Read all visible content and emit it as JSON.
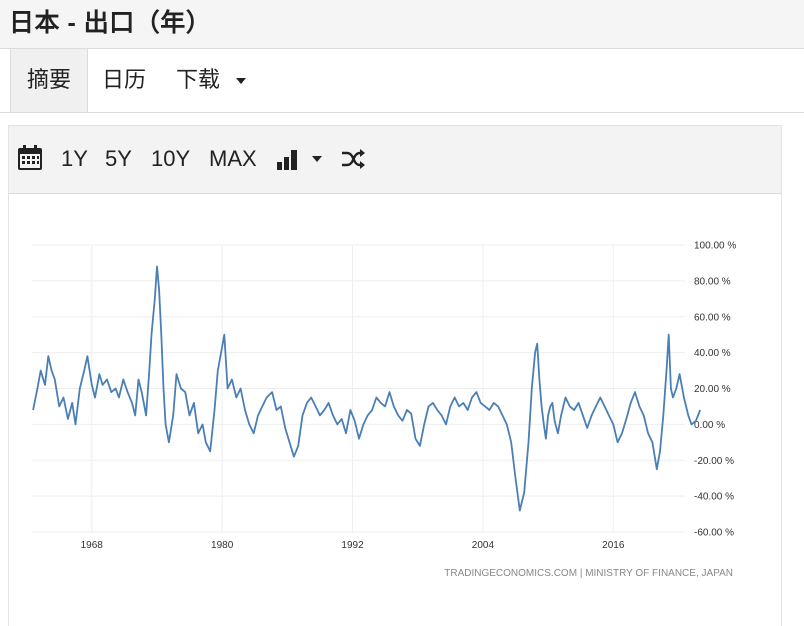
{
  "page": {
    "title": "日本 - 出口（年）"
  },
  "tabs": [
    {
      "label": "摘要"
    },
    {
      "label": "日历"
    },
    {
      "label": "下载"
    }
  ],
  "toolbar": {
    "ranges": [
      "1Y",
      "5Y",
      "10Y",
      "MAX"
    ],
    "icons": [
      "calendar-icon",
      "bar-chart-icon",
      "chevron-down-icon",
      "shuffle-icon"
    ]
  },
  "chart_data": {
    "type": "line",
    "title": "",
    "xlabel": "",
    "ylabel": "",
    "ylim": [
      -60,
      100
    ],
    "xlim": [
      1962.5,
      2022.6
    ],
    "yticks": [
      100,
      80,
      60,
      40,
      20,
      0,
      -20,
      -40,
      -60
    ],
    "ytick_labels": [
      "100.00 %",
      "80.00 %",
      "60.00 %",
      "40.00 %",
      "20.00 %",
      "0.00 %",
      "-20.00 %",
      "-40.00 %",
      "-60.00 %"
    ],
    "xticks": [
      1968,
      1980,
      1992,
      2004,
      2016
    ],
    "xtick_labels": [
      "1968",
      "1980",
      "1992",
      "2004",
      "2016"
    ],
    "grid": true,
    "source": "TRADINGECONOMICS.COM | MINISTRY OF FINANCE, JAPAN",
    "colors": {
      "line": "#4a7fb5",
      "grid": "#eeeeee"
    },
    "series": [
      {
        "x": [
          1962.6,
          1963.0,
          1963.3,
          1963.7,
          1964.0,
          1964.3,
          1964.6,
          1965.0,
          1965.4,
          1965.8,
          1966.2,
          1966.5,
          1966.9,
          1967.3,
          1967.6,
          1968.0,
          1968.3,
          1968.7,
          1969.0,
          1969.4,
          1969.8,
          1970.2,
          1970.5,
          1970.9,
          1971.3,
          1971.7,
          1972.0,
          1972.3,
          1972.6,
          1973.0,
          1973.3,
          1973.5,
          1973.8,
          1974.0,
          1974.2,
          1974.4,
          1974.6,
          1974.8,
          1975.1,
          1975.5,
          1975.8,
          1976.2,
          1976.6,
          1977.0,
          1977.4,
          1977.8,
          1978.2,
          1978.5,
          1978.9,
          1979.3,
          1979.6,
          1979.9,
          1980.2,
          1980.5,
          1980.9,
          1981.3,
          1981.7,
          1982.1,
          1982.5,
          1982.9,
          1983.3,
          1983.7,
          1984.1,
          1984.6,
          1985.0,
          1985.4,
          1985.8,
          1986.2,
          1986.6,
          1987.0,
          1987.4,
          1987.8,
          1988.2,
          1988.6,
          1989.0,
          1989.4,
          1989.8,
          1990.2,
          1990.6,
          1991.0,
          1991.4,
          1991.8,
          1992.2,
          1992.6,
          1993.0,
          1993.4,
          1993.8,
          1994.2,
          1994.6,
          1995.0,
          1995.4,
          1995.8,
          1996.2,
          1996.6,
          1997.0,
          1997.4,
          1997.8,
          1998.2,
          1998.6,
          1999.0,
          1999.4,
          1999.8,
          2000.2,
          2000.6,
          2001.0,
          2001.4,
          2001.8,
          2002.2,
          2002.6,
          2003.0,
          2003.4,
          2003.8,
          2004.2,
          2004.6,
          2005.0,
          2005.4,
          2005.8,
          2006.2,
          2006.6,
          2007.0,
          2007.4,
          2007.8,
          2008.2,
          2008.5,
          2008.8,
          2009.0,
          2009.2,
          2009.4,
          2009.6,
          2009.8,
          2010.0,
          2010.2,
          2010.4,
          2010.6,
          2010.9,
          2011.2,
          2011.6,
          2012.0,
          2012.4,
          2012.8,
          2013.2,
          2013.6,
          2014.0,
          2014.4,
          2014.8,
          2015.2,
          2015.6,
          2016.0,
          2016.4,
          2016.8,
          2017.2,
          2017.6,
          2018.0,
          2018.4,
          2018.8,
          2019.2,
          2019.6,
          2020.0,
          2020.3,
          2020.6,
          2020.9,
          2021.1,
          2021.3,
          2021.5,
          2021.8,
          2022.1,
          2022.5,
          2022.9,
          2023.2,
          2023.6,
          2024.0
        ],
        "y": [
          8,
          20,
          30,
          22,
          38,
          30,
          25,
          10,
          15,
          3,
          12,
          0,
          20,
          30,
          38,
          22,
          15,
          28,
          22,
          25,
          18,
          20,
          15,
          25,
          18,
          12,
          5,
          25,
          18,
          5,
          30,
          50,
          70,
          88,
          75,
          50,
          20,
          0,
          -10,
          5,
          28,
          20,
          18,
          5,
          12,
          -5,
          0,
          -10,
          -15,
          8,
          30,
          40,
          50,
          20,
          25,
          15,
          20,
          8,
          0,
          -5,
          5,
          10,
          15,
          18,
          8,
          10,
          -2,
          -10,
          -18,
          -12,
          5,
          12,
          15,
          10,
          5,
          8,
          12,
          5,
          0,
          3,
          -5,
          8,
          2,
          -8,
          0,
          5,
          8,
          15,
          12,
          10,
          18,
          10,
          5,
          2,
          8,
          6,
          -8,
          -12,
          0,
          10,
          12,
          8,
          5,
          0,
          10,
          15,
          10,
          12,
          8,
          15,
          18,
          12,
          10,
          8,
          12,
          10,
          5,
          0,
          -10,
          -30,
          -48,
          -38,
          -10,
          20,
          40,
          45,
          25,
          10,
          0,
          -8,
          5,
          10,
          12,
          2,
          -5,
          5,
          15,
          10,
          8,
          12,
          5,
          -2,
          5,
          10,
          15,
          10,
          5,
          0,
          -10,
          -5,
          3,
          12,
          18,
          10,
          5,
          -5,
          -10,
          -25,
          -15,
          5,
          30,
          50,
          20,
          15,
          20,
          28,
          15,
          5,
          0,
          2,
          8
        ]
      }
    ]
  }
}
